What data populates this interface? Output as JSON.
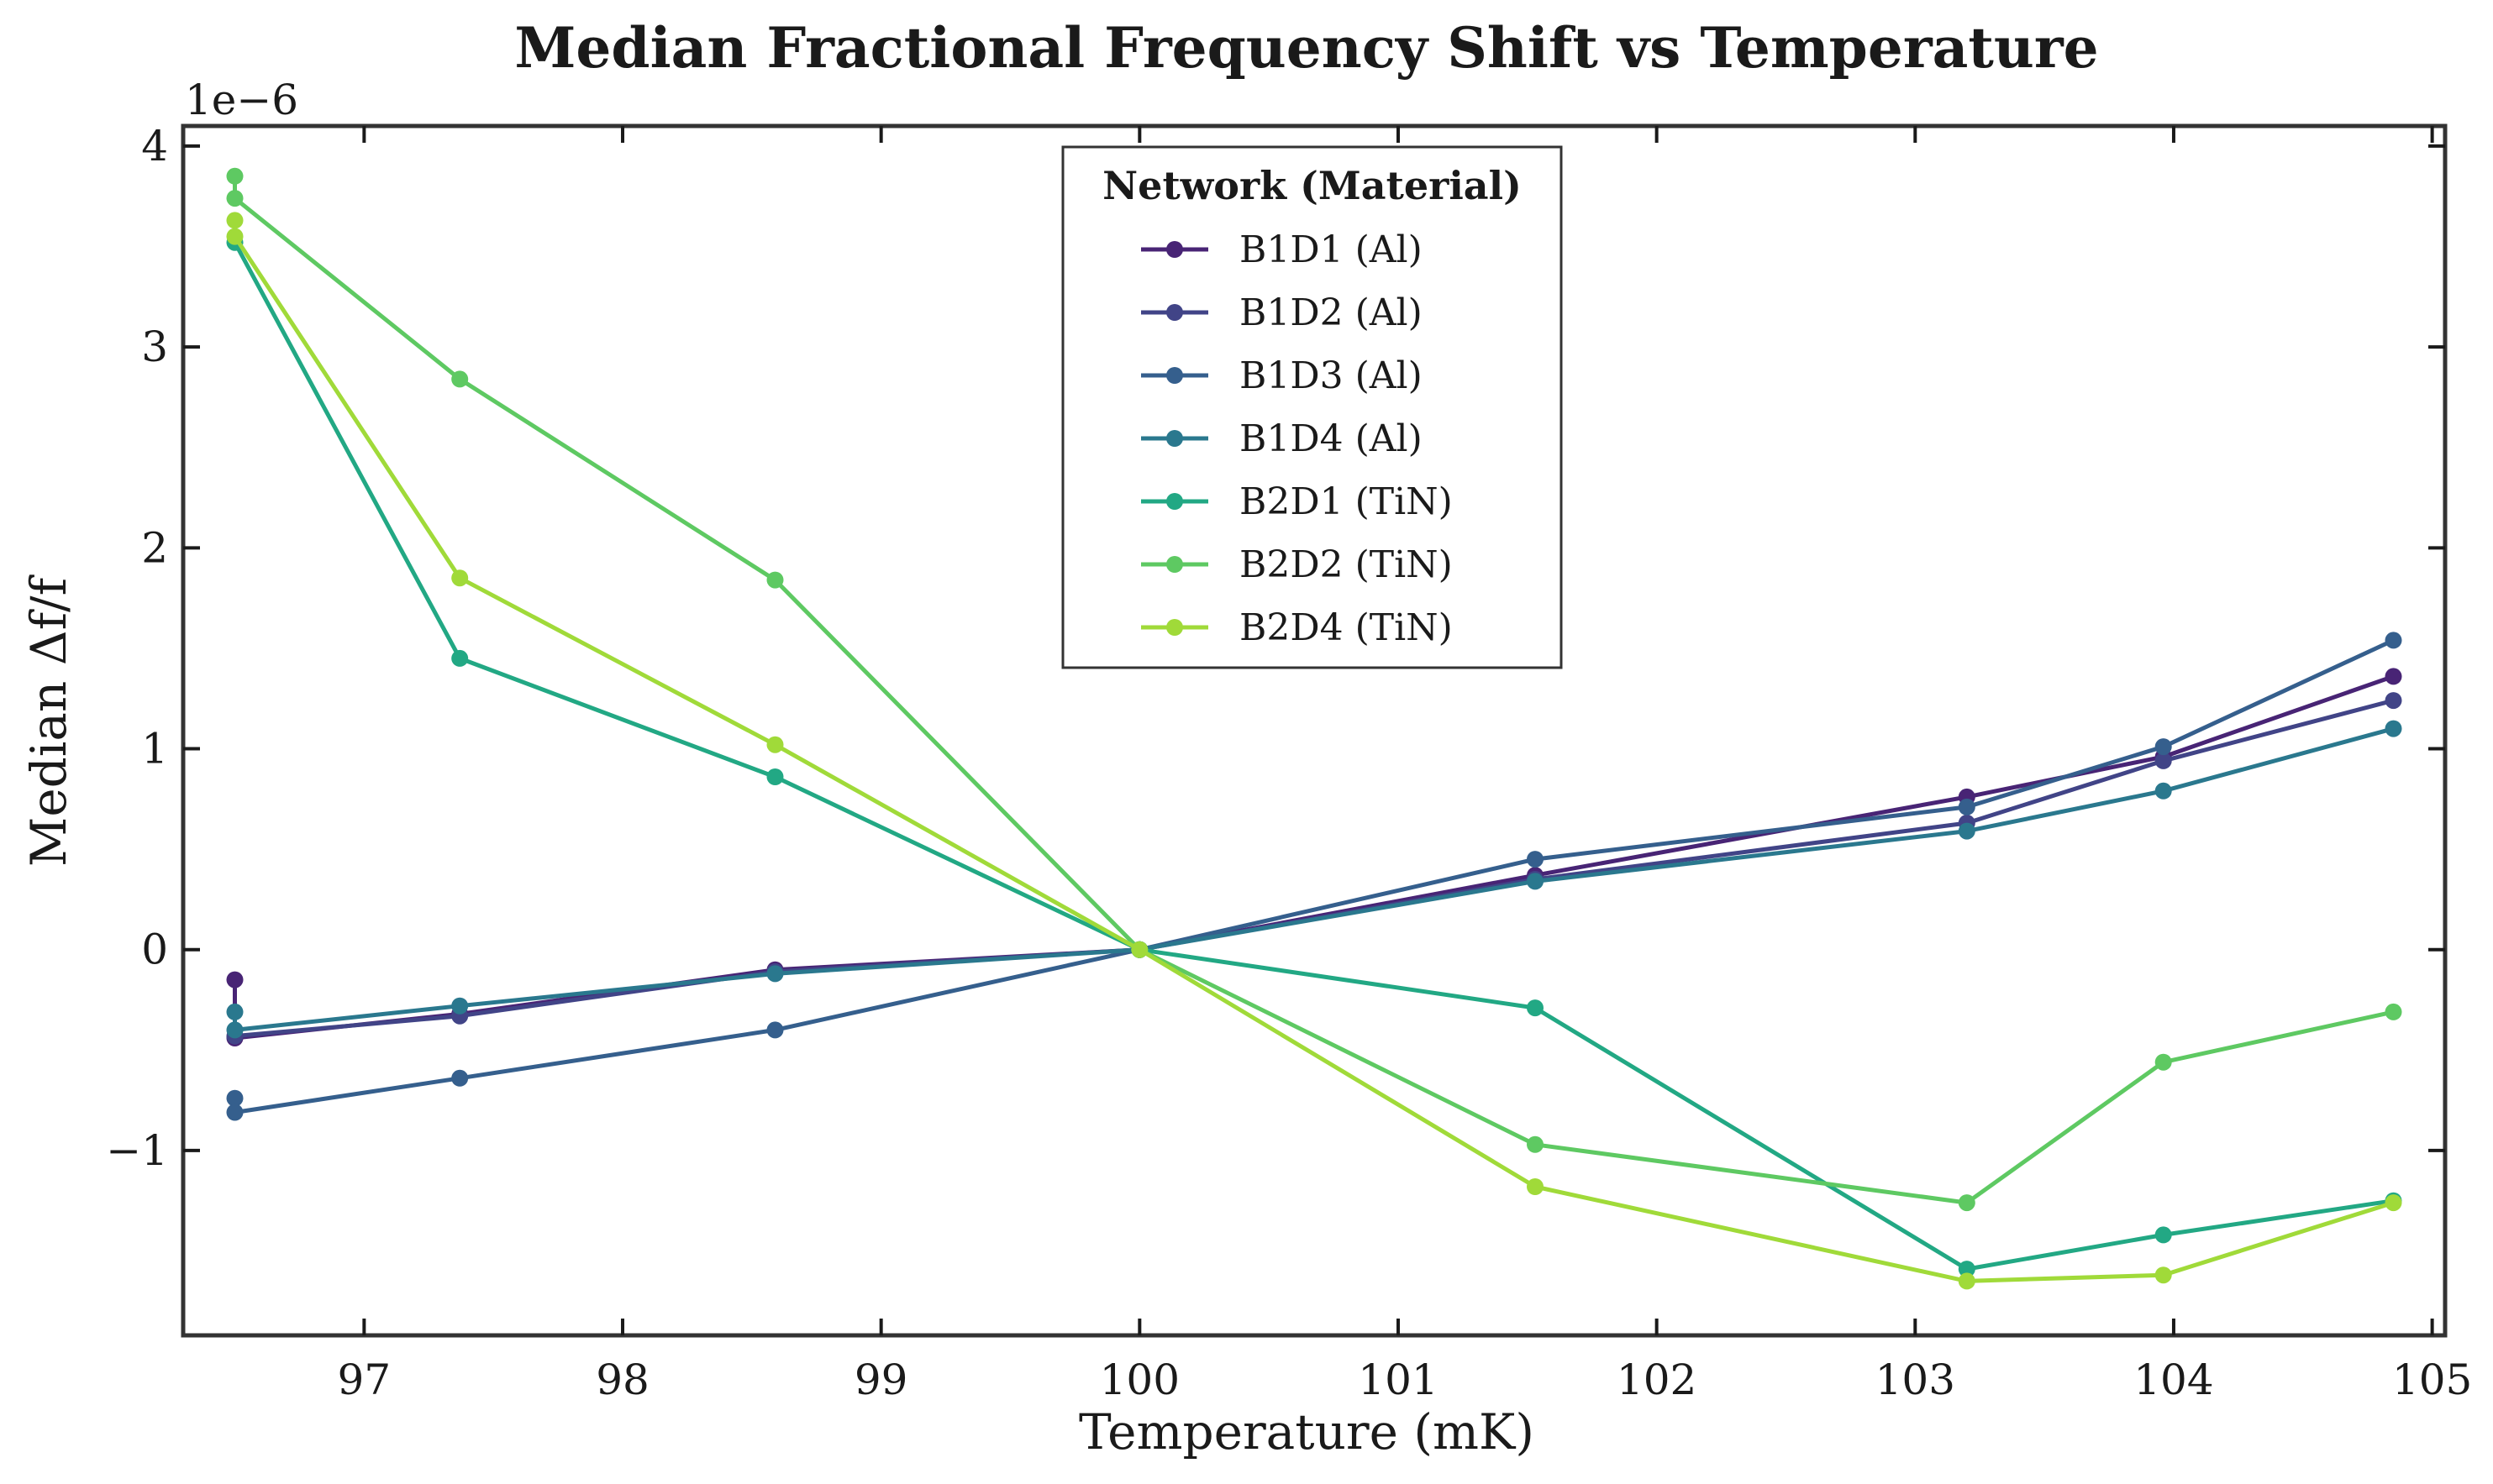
{
  "chart_data": {
    "type": "line",
    "title": "Median Fractional Frequency Shift vs Temperature",
    "xlabel": "Temperature (mK)",
    "ylabel": "Median Δf/f",
    "y_offset_label": "1e−6",
    "xlim": [
      96.3,
      105.05
    ],
    "ylim": [
      -1.92,
      4.1
    ],
    "xticks": [
      97,
      98,
      99,
      100,
      101,
      102,
      103,
      104,
      105
    ],
    "xtick_labels": [
      "97",
      "98",
      "99",
      "100",
      "101",
      "102",
      "103",
      "104",
      "105"
    ],
    "yticks": [
      -1,
      0,
      1,
      2,
      3,
      4
    ],
    "ytick_labels": [
      "−1",
      "0",
      "1",
      "2",
      "3",
      "4"
    ],
    "legend": {
      "title": "Network (Material)",
      "position": "upper center"
    },
    "series": [
      {
        "name": "B1D1 (Al)",
        "color": "#482475",
        "points": [
          [
            96.5,
            -0.15
          ],
          [
            96.5,
            -0.44
          ],
          [
            97.37,
            -0.32
          ],
          [
            98.59,
            -0.1
          ],
          [
            100.0,
            0.0
          ],
          [
            101.53,
            0.37
          ],
          [
            103.2,
            0.76
          ],
          [
            103.96,
            0.96
          ],
          [
            104.85,
            1.36
          ]
        ]
      },
      {
        "name": "B1D2 (Al)",
        "color": "#414487",
        "points": [
          [
            96.5,
            -0.43
          ],
          [
            97.37,
            -0.33
          ],
          [
            98.59,
            -0.11
          ],
          [
            100.0,
            0.0
          ],
          [
            101.53,
            0.35
          ],
          [
            103.2,
            0.63
          ],
          [
            103.96,
            0.94
          ],
          [
            104.85,
            1.24
          ]
        ]
      },
      {
        "name": "B1D3 (Al)",
        "color": "#355f8d",
        "points": [
          [
            96.5,
            -0.74
          ],
          [
            96.5,
            -0.81
          ],
          [
            97.37,
            -0.64
          ],
          [
            98.59,
            -0.4
          ],
          [
            100.0,
            0.0
          ],
          [
            101.53,
            0.45
          ],
          [
            103.2,
            0.71
          ],
          [
            103.96,
            1.01
          ],
          [
            104.85,
            1.54
          ]
        ]
      },
      {
        "name": "B1D4 (Al)",
        "color": "#2a788e",
        "points": [
          [
            96.5,
            -0.31
          ],
          [
            96.5,
            -0.4
          ],
          [
            97.37,
            -0.28
          ],
          [
            98.59,
            -0.12
          ],
          [
            100.0,
            0.0
          ],
          [
            101.53,
            0.34
          ],
          [
            103.2,
            0.59
          ],
          [
            103.96,
            0.79
          ],
          [
            104.85,
            1.1
          ]
        ]
      },
      {
        "name": "B2D1 (TiN)",
        "color": "#22a884",
        "points": [
          [
            96.5,
            3.52
          ],
          [
            97.37,
            1.45
          ],
          [
            98.59,
            0.86
          ],
          [
            100.0,
            0.0
          ],
          [
            101.53,
            -0.29
          ],
          [
            103.2,
            -1.59
          ],
          [
            103.96,
            -1.42
          ],
          [
            104.85,
            -1.25
          ]
        ]
      },
      {
        "name": "B2D2 (TiN)",
        "color": "#5ec962",
        "points": [
          [
            96.5,
            3.85
          ],
          [
            96.5,
            3.74
          ],
          [
            97.37,
            2.84
          ],
          [
            98.59,
            1.84
          ],
          [
            100.0,
            0.0
          ],
          [
            101.53,
            -0.97
          ],
          [
            103.2,
            -1.26
          ],
          [
            103.96,
            -0.56
          ],
          [
            104.85,
            -0.31
          ]
        ]
      },
      {
        "name": "B2D4 (TiN)",
        "color": "#a0da39",
        "points": [
          [
            96.5,
            3.63
          ],
          [
            96.5,
            3.55
          ],
          [
            97.37,
            1.85
          ],
          [
            98.59,
            1.02
          ],
          [
            100.0,
            0.0
          ],
          [
            101.53,
            -1.18
          ],
          [
            103.2,
            -1.65
          ],
          [
            103.96,
            -1.62
          ],
          [
            104.85,
            -1.26
          ]
        ]
      }
    ]
  }
}
